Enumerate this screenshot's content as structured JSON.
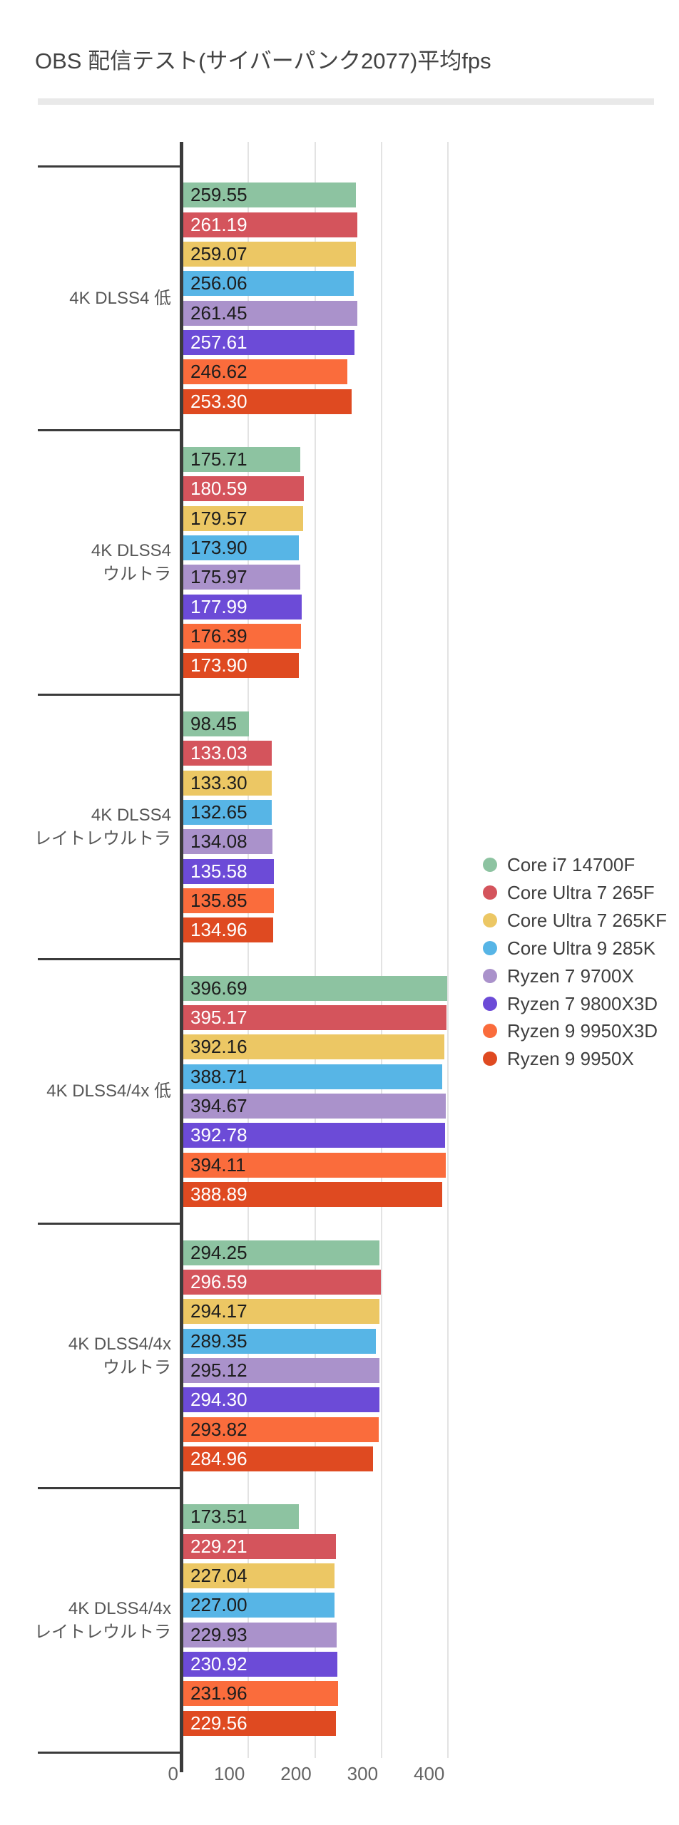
{
  "page": {
    "background": "#ffffff"
  },
  "colors": {
    "axis_and_separators": "#3b3b3b",
    "gridline": "#e3e3e3",
    "title_text": "#434343",
    "group_label_text": "#575757",
    "tick_label_text": "#646464",
    "legend_label_text": "#3f3f3f",
    "divider_strip": "#e9e9e9",
    "value_label_dark": "#1d1d1d",
    "value_label_light": "#ffffff"
  },
  "chart_data": {
    "type": "bar",
    "orientation": "horizontal",
    "title": "OBS 配信テスト(サイバーパンク2077)平均fps",
    "xlabel": "",
    "ylabel": "",
    "grid": true,
    "legend_position": "middle-right",
    "value_label_decimals": 2,
    "x_ticks": [
      0,
      100,
      200,
      300,
      400
    ],
    "x_axis_range": [
      0,
      430
    ],
    "categories": [
      "4K DLSS4 低",
      "4K DLSS4 ウルトラ",
      "4K DLSS4 レイトレウルトラ",
      "4K DLSS4/4x 低",
      "4K DLSS4/4x ウルトラ",
      "4K DLSS4/4x レイトレウルトラ"
    ],
    "category_lines": [
      [
        "4K DLSS4 低"
      ],
      [
        "4K DLSS4",
        "ウルトラ"
      ],
      [
        "4K DLSS4",
        "レイトレウルトラ"
      ],
      [
        "4K DLSS4/4x 低"
      ],
      [
        "4K DLSS4/4x",
        "ウルトラ"
      ],
      [
        "4K DLSS4/4x",
        "レイトレウルトラ"
      ]
    ],
    "series": [
      {
        "name": "Core i7 14700F",
        "color": "#8dc3a1",
        "value_text_color": "#1d1d1d",
        "values": [
          259.55,
          175.71,
          98.45,
          396.69,
          294.25,
          173.51
        ]
      },
      {
        "name": "Core Ultra 7 265F",
        "color": "#d4545c",
        "value_text_color": "#ffffff",
        "values": [
          261.19,
          180.59,
          133.03,
          395.17,
          296.59,
          229.21
        ]
      },
      {
        "name": "Core Ultra 7 265KF",
        "color": "#ecc764",
        "value_text_color": "#1d1d1d",
        "values": [
          259.07,
          179.57,
          133.3,
          392.16,
          294.17,
          227.04
        ]
      },
      {
        "name": "Core Ultra 9 285K",
        "color": "#57b5e6",
        "value_text_color": "#1d1d1d",
        "values": [
          256.06,
          173.9,
          132.65,
          388.71,
          289.35,
          227.0
        ]
      },
      {
        "name": "Ryzen 7 9700X",
        "color": "#aa92cb",
        "value_text_color": "#1d1d1d",
        "values": [
          261.45,
          175.97,
          134.08,
          394.67,
          295.12,
          229.93
        ]
      },
      {
        "name": "Ryzen 7 9800X3D",
        "color": "#6c4bd7",
        "value_text_color": "#ffffff",
        "values": [
          257.61,
          177.99,
          135.58,
          392.78,
          294.3,
          230.92
        ]
      },
      {
        "name": "Ryzen 9 9950X3D",
        "color": "#fa6c3c",
        "value_text_color": "#1d1d1d",
        "values": [
          246.62,
          176.39,
          135.85,
          394.11,
          293.82,
          231.96
        ]
      },
      {
        "name": "Ryzen 9 9950X",
        "color": "#df4a21",
        "value_text_color": "#ffffff",
        "values": [
          253.3,
          173.9,
          134.96,
          388.89,
          284.96,
          229.56
        ]
      }
    ]
  }
}
